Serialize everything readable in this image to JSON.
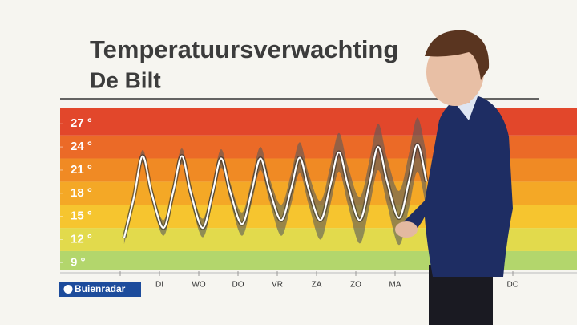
{
  "chart_data": {
    "type": "line",
    "title": "Temperatuursverwachting",
    "subtitle": "De Bilt",
    "categories": [
      null,
      "DI",
      "WO",
      "DO",
      "VR",
      "ZA",
      "ZO",
      "MA",
      null,
      null,
      "DO"
    ],
    "xlim": [
      0,
      10
    ],
    "ylim": [
      8,
      29
    ],
    "yticks": [
      {
        "value": 9,
        "label": "9 °"
      },
      {
        "value": 12,
        "label": "12 °"
      },
      {
        "value": 15,
        "label": "15 °"
      },
      {
        "value": 18,
        "label": "18 °"
      },
      {
        "value": 21,
        "label": "21 °"
      },
      {
        "value": 24,
        "label": "24 °"
      },
      {
        "value": 27,
        "label": "27 °"
      }
    ],
    "band_colors": [
      "#b3d66c",
      "#e2da4c",
      "#f6c52f",
      "#f4a826",
      "#f08a24",
      "#eb6a27",
      "#e2472b"
    ],
    "x": [
      0.1,
      0.35,
      0.57,
      0.8,
      1.1,
      1.35,
      1.57,
      1.8,
      2.1,
      2.35,
      2.57,
      2.8,
      3.1,
      3.35,
      3.57,
      3.8,
      4.1,
      4.35,
      4.57,
      4.8,
      5.1,
      5.35,
      5.57,
      5.8,
      6.1,
      6.35,
      6.57,
      6.8,
      7.1,
      7.35,
      7.57,
      7.8
    ],
    "series": [
      {
        "color": "#ffffff",
        "values": [
          12.2,
          17.5,
          22.8,
          18.0,
          13.5,
          18.2,
          22.8,
          18.0,
          13.5,
          18.0,
          22.5,
          18.2,
          14.0,
          18.3,
          22.5,
          18.5,
          14.5,
          18.5,
          22.6,
          18.5,
          14.5,
          19.0,
          23.3,
          19.0,
          14.5,
          19.3,
          24.0,
          19.5,
          14.8,
          19.5,
          24.3,
          19.5
        ]
      }
    ],
    "band": {
      "color": "#5a5a5a",
      "high": [
        13.0,
        18.3,
        23.6,
        18.8,
        14.5,
        19.2,
        23.8,
        19.0,
        14.7,
        19.2,
        23.7,
        19.4,
        15.5,
        19.8,
        24.0,
        20.0,
        16.5,
        20.5,
        24.6,
        20.5,
        17.0,
        21.5,
        25.8,
        21.5,
        17.5,
        22.3,
        27.0,
        22.5,
        18.3,
        23.0,
        27.8,
        23.0
      ],
      "low": [
        11.4,
        16.7,
        22.0,
        17.2,
        12.5,
        17.2,
        21.8,
        17.0,
        12.3,
        16.8,
        21.3,
        17.0,
        12.5,
        16.8,
        21.0,
        17.0,
        12.5,
        16.5,
        20.6,
        16.5,
        12.0,
        16.5,
        20.8,
        16.5,
        11.5,
        16.3,
        21.0,
        16.5,
        11.3,
        16.0,
        20.8,
        16.0
      ]
    }
  },
  "logo": {
    "text": "Buienradar"
  }
}
